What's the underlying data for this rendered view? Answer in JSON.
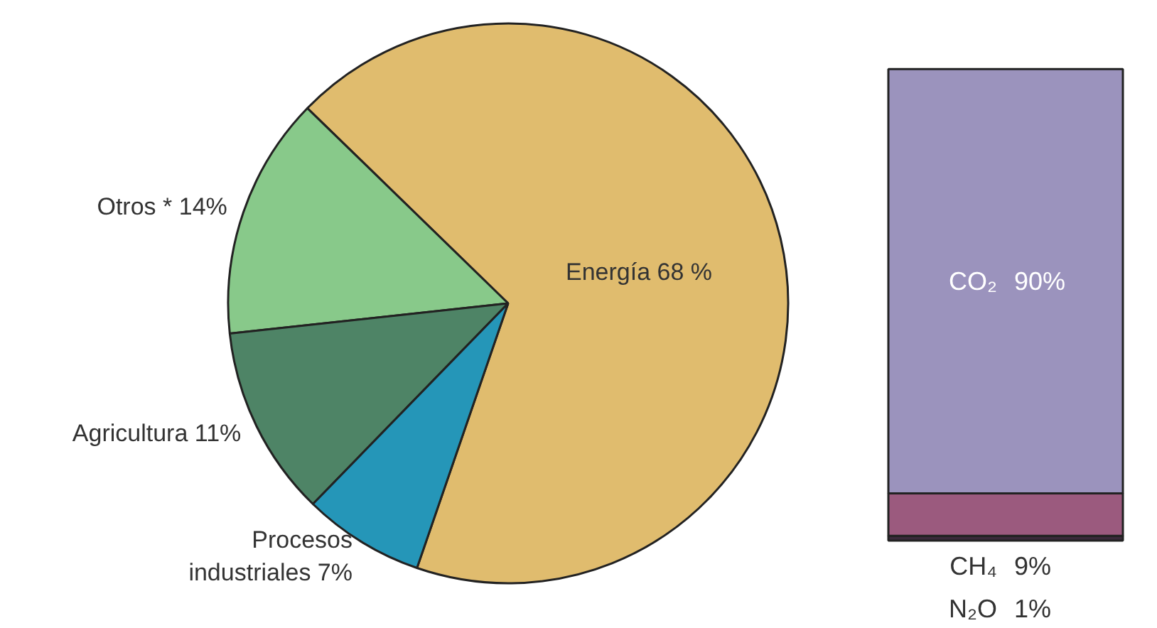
{
  "chart_data": [
    {
      "type": "pie",
      "categories": [
        "Energía",
        "Otros *",
        "Agricultura",
        "Procesos industriales"
      ],
      "values": [
        68,
        14,
        11,
        7
      ],
      "value_labels": [
        "68 %",
        "14%",
        "11%",
        "7%"
      ],
      "colors": [
        "#e0bc6e",
        "#88c98a",
        "#4e8466",
        "#2596b8"
      ]
    },
    {
      "type": "bar",
      "stacked": true,
      "categories": [
        null
      ],
      "series": [
        {
          "name": "N₂O",
          "color": "#3a2a3a",
          "values": [
            1
          ],
          "value_labels": [
            "1%"
          ]
        },
        {
          "name": "CH₄",
          "color": "#9b5a7e",
          "values": [
            9
          ],
          "value_labels": [
            "9%"
          ]
        },
        {
          "name": "CO₂",
          "color": "#9b93bd",
          "values": [
            90
          ],
          "value_labels": [
            "90%"
          ]
        }
      ]
    }
  ]
}
